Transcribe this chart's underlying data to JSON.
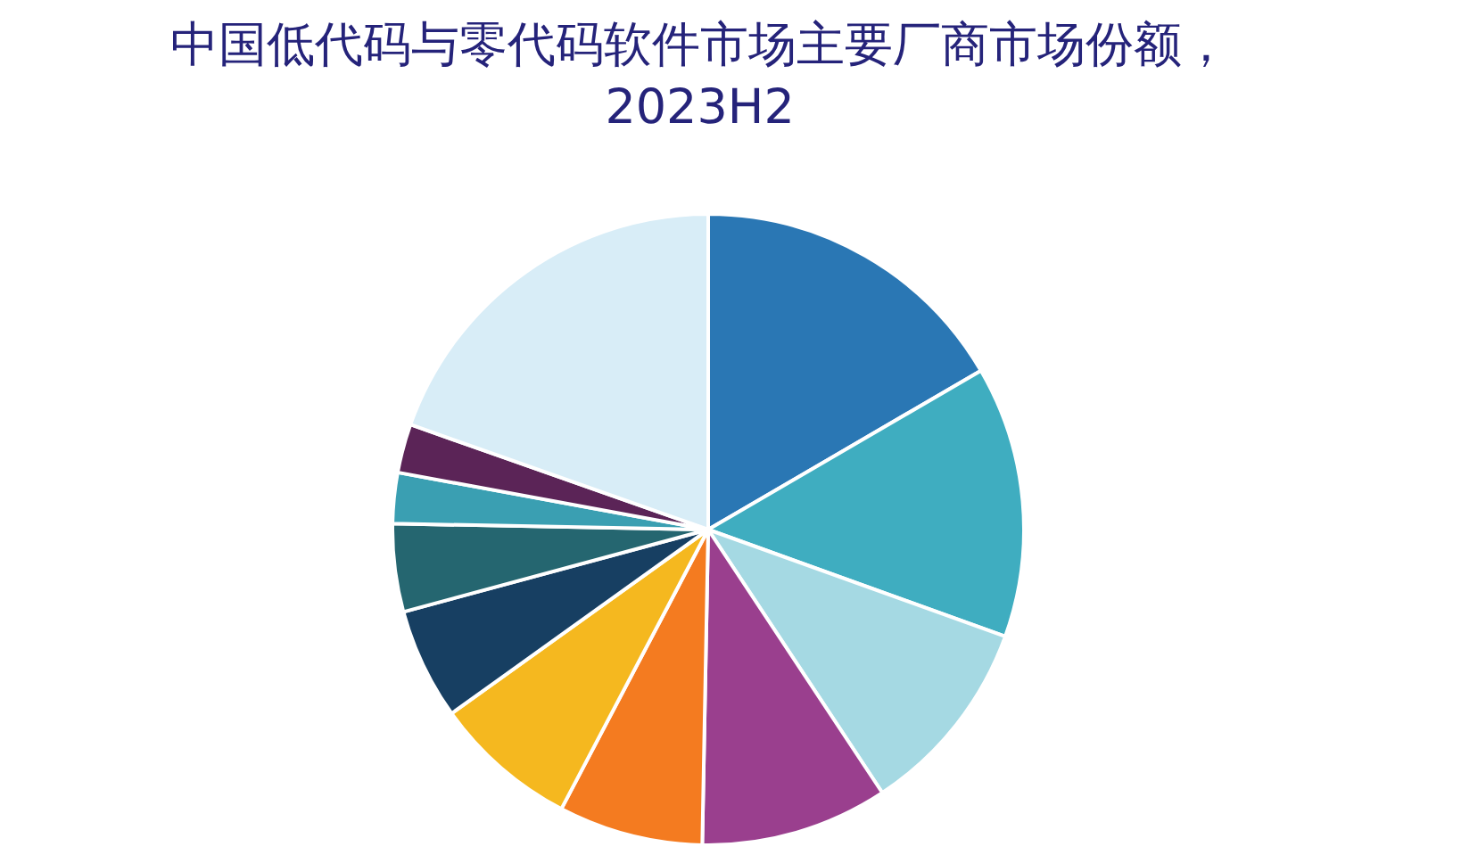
{
  "chart_data": {
    "type": "pie",
    "title": "中国低代码与零代码软件市场主要厂商市场份额，\n2023H2",
    "categories": [
      null,
      null,
      null,
      null,
      null,
      null,
      null,
      null,
      null,
      null,
      null
    ],
    "values": [
      16.6,
      13.9,
      10.2,
      9.6,
      7.4,
      7.4,
      5.7,
      4.5,
      2.6,
      2.5,
      19.6
    ],
    "colors": [
      "#2a77b4",
      "#3fadc0",
      "#a5d9e3",
      "#9a3f8e",
      "#f47b20",
      "#f5b81f",
      "#173f62",
      "#256670",
      "#3a9fb2",
      "#5b2457",
      "#d8edf7"
    ]
  }
}
